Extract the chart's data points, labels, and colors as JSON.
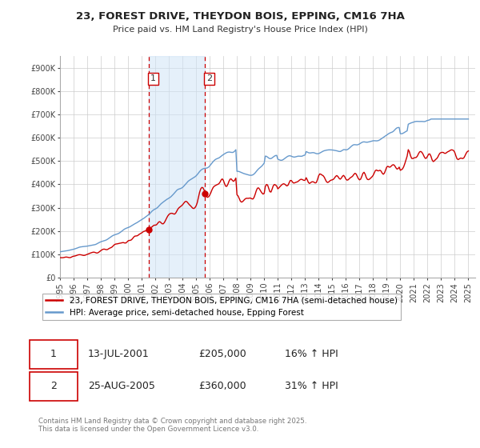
{
  "title": "23, FOREST DRIVE, THEYDON BOIS, EPPING, CM16 7HA",
  "subtitle": "Price paid vs. HM Land Registry's House Price Index (HPI)",
  "ylim": [
    0,
    950000
  ],
  "yticks": [
    0,
    100000,
    200000,
    300000,
    400000,
    500000,
    600000,
    700000,
    800000,
    900000
  ],
  "ytick_labels": [
    "£0",
    "£100K",
    "£200K",
    "£300K",
    "£400K",
    "£500K",
    "£600K",
    "£700K",
    "£800K",
    "£900K"
  ],
  "xlim": [
    1995,
    2025.5
  ],
  "xtick_start": 1995,
  "xtick_end": 2025,
  "sale1_date": 2001.54,
  "sale1_price": 205000,
  "sale1_label": "1",
  "sale2_date": 2005.65,
  "sale2_price": 360000,
  "sale2_label": "2",
  "sale_vline_color": "#cc0000",
  "shaded_region_color": "#d0e4f7",
  "shaded_region_alpha": 0.55,
  "hpi_line_color": "#6699cc",
  "price_line_color": "#cc0000",
  "legend1_text": "23, FOREST DRIVE, THEYDON BOIS, EPPING, CM16 7HA (semi-detached house)",
  "legend2_text": "HPI: Average price, semi-detached house, Epping Forest",
  "table_row1": [
    "1",
    "13-JUL-2001",
    "£205,000",
    "16% ↑ HPI"
  ],
  "table_row2": [
    "2",
    "25-AUG-2005",
    "£360,000",
    "31% ↑ HPI"
  ],
  "footer": "Contains HM Land Registry data © Crown copyright and database right 2025.\nThis data is licensed under the Open Government Licence v3.0.",
  "background_color": "#ffffff",
  "grid_color": "#cccccc",
  "title_fontsize": 9.5,
  "subtitle_fontsize": 8,
  "tick_fontsize": 7
}
